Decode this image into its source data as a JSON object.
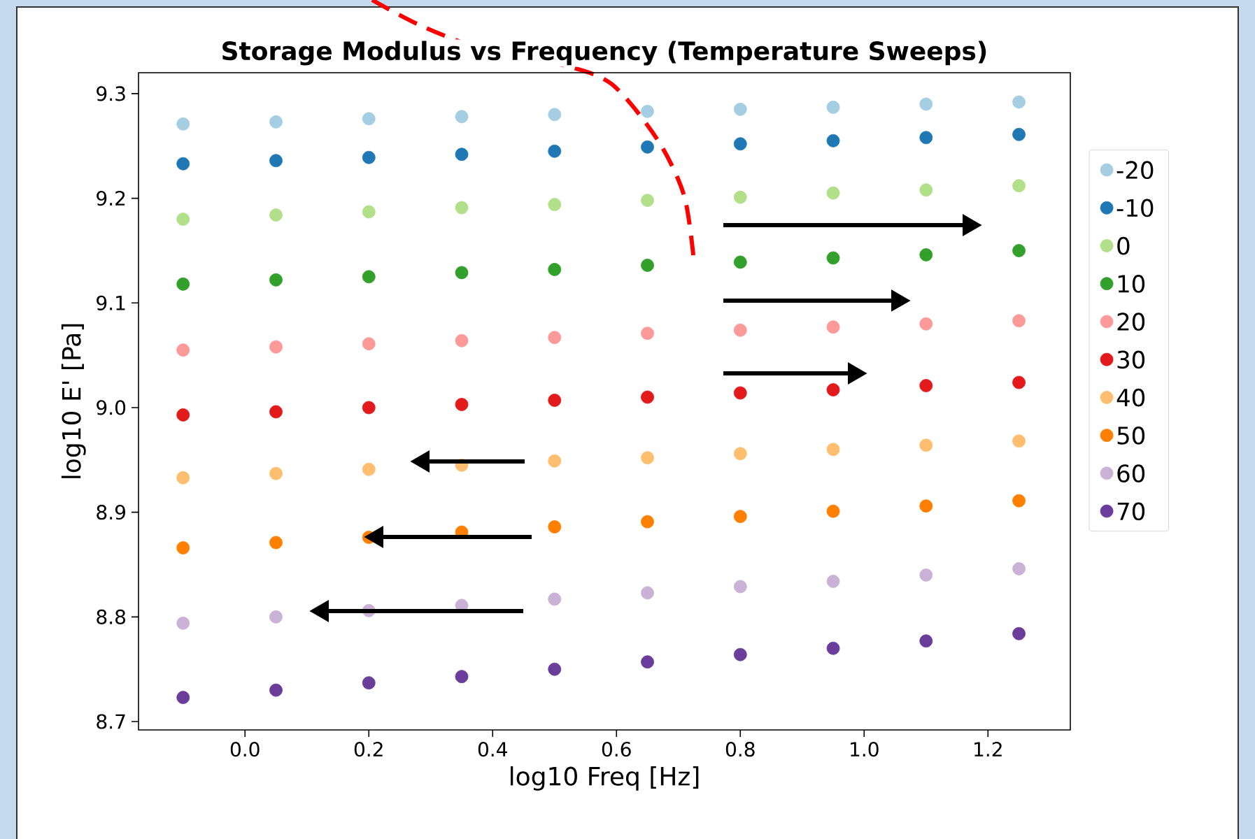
{
  "chart_data": {
    "type": "scatter",
    "title": "Storage Modulus vs Frequency (Temperature Sweeps)",
    "xlabel": "log10 Freq [Hz]",
    "ylabel": "log10 E' [Pa]",
    "x": [
      -0.1,
      0.05,
      0.2,
      0.35,
      0.5,
      0.65,
      0.8,
      0.95,
      1.1,
      1.25
    ],
    "series": [
      {
        "name": "-20",
        "color": "#a6cee3",
        "values": [
          9.271,
          9.273,
          9.276,
          9.278,
          9.28,
          9.283,
          9.285,
          9.287,
          9.29,
          9.292
        ]
      },
      {
        "name": "-10",
        "color": "#1f78b4",
        "values": [
          9.233,
          9.236,
          9.239,
          9.242,
          9.245,
          9.249,
          9.252,
          9.255,
          9.258,
          9.261
        ]
      },
      {
        "name": "0",
        "color": "#b2df8a",
        "values": [
          9.18,
          9.184,
          9.187,
          9.191,
          9.194,
          9.198,
          9.201,
          9.205,
          9.208,
          9.212
        ]
      },
      {
        "name": "10",
        "color": "#33a02c",
        "values": [
          9.118,
          9.122,
          9.125,
          9.129,
          9.132,
          9.136,
          9.139,
          9.143,
          9.146,
          9.15
        ]
      },
      {
        "name": "20",
        "color": "#fb9a99",
        "values": [
          9.055,
          9.058,
          9.061,
          9.064,
          9.067,
          9.071,
          9.074,
          9.077,
          9.08,
          9.083
        ]
      },
      {
        "name": "30",
        "color": "#e31a1c",
        "values": [
          8.993,
          8.996,
          9.0,
          9.003,
          9.007,
          9.01,
          9.014,
          9.017,
          9.021,
          9.024
        ]
      },
      {
        "name": "40",
        "color": "#fdbf6f",
        "values": [
          8.933,
          8.937,
          8.941,
          8.945,
          8.949,
          8.952,
          8.956,
          8.96,
          8.964,
          8.968
        ]
      },
      {
        "name": "50",
        "color": "#ff7f00",
        "values": [
          8.866,
          8.871,
          8.876,
          8.881,
          8.886,
          8.891,
          8.896,
          8.901,
          8.906,
          8.911
        ]
      },
      {
        "name": "60",
        "color": "#cab2d6",
        "values": [
          8.794,
          8.8,
          8.806,
          8.811,
          8.817,
          8.823,
          8.829,
          8.834,
          8.84,
          8.846
        ]
      },
      {
        "name": "70",
        "color": "#6a3d9a",
        "values": [
          8.723,
          8.73,
          8.737,
          8.743,
          8.75,
          8.757,
          8.764,
          8.77,
          8.777,
          8.784
        ]
      }
    ],
    "xlim": [
      -0.172,
      1.333
    ],
    "ylim": [
      8.692,
      9.32
    ],
    "xticks": [
      {
        "value": 0,
        "label": "0.0"
      },
      0.2,
      0.4,
      0.6,
      0.8,
      {
        "value": 1,
        "label": "1.0"
      },
      1.2
    ],
    "yticks": [
      8.7,
      8.8,
      8.9,
      {
        "value": 9,
        "label": "9.0"
      },
      9.1,
      9.2,
      9.3
    ],
    "legend": "right"
  }
}
